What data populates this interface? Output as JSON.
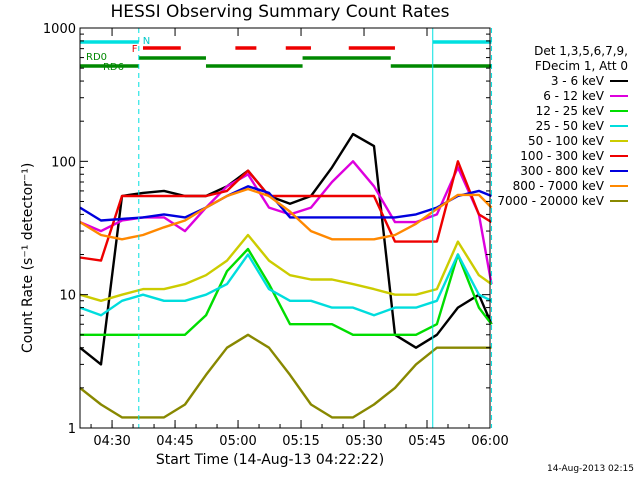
{
  "chart_data": {
    "type": "line",
    "title": "HESSI Observing Summary Count Rates",
    "xlabel": "Start Time (14-Aug-13 04:22:22)",
    "ylabel": "Count Rate (s⁻¹ detector⁻¹)",
    "yscale": "log",
    "ylim": [
      1,
      1000
    ],
    "xlim": [
      "04:22:22",
      "06:00:00"
    ],
    "x_ticks": [
      "04:30",
      "04:45",
      "05:00",
      "05:15",
      "05:30",
      "05:45",
      "06:00"
    ],
    "y_ticks": [
      "1",
      "10",
      "100",
      "1000"
    ],
    "grid": false,
    "legend_position": "right",
    "legend_header": [
      "Det 1,3,5,6,7,9,",
      "FDecim 1, Att 0"
    ],
    "x_minutes": [
      0,
      5,
      10,
      15,
      20,
      25,
      30,
      35,
      40,
      45,
      50,
      55,
      60,
      65,
      70,
      75,
      80,
      85,
      90,
      95,
      98
    ],
    "series": [
      {
        "name": "3 - 6 keV",
        "color": "#000000",
        "values": [
          4,
          3,
          55,
          58,
          60,
          55,
          55,
          65,
          85,
          55,
          48,
          55,
          90,
          160,
          130,
          5,
          4,
          5,
          8,
          10,
          6
        ]
      },
      {
        "name": "6 - 12 keV",
        "color": "#dd00dd",
        "values": [
          35,
          30,
          36,
          38,
          38,
          30,
          45,
          65,
          80,
          45,
          40,
          45,
          70,
          100,
          65,
          35,
          35,
          40,
          90,
          40,
          12
        ]
      },
      {
        "name": "12 - 25 keV",
        "color": "#00dd00",
        "values": [
          5,
          5,
          5,
          5,
          5,
          5,
          7,
          15,
          22,
          12,
          6,
          6,
          6,
          5,
          5,
          5,
          5,
          6,
          20,
          8,
          6
        ]
      },
      {
        "name": "25 - 50 keV",
        "color": "#00dddd",
        "values": [
          8,
          7,
          9,
          10,
          9,
          9,
          10,
          12,
          20,
          11,
          9,
          9,
          8,
          8,
          7,
          8,
          8,
          9,
          20,
          10,
          9
        ]
      },
      {
        "name": "50 - 100 keV",
        "color": "#cccc00",
        "values": [
          10,
          9,
          10,
          11,
          11,
          12,
          14,
          18,
          28,
          18,
          14,
          13,
          13,
          12,
          11,
          10,
          10,
          11,
          25,
          14,
          12
        ]
      },
      {
        "name": "100 - 300 keV",
        "color": "#ee0000",
        "values": [
          19,
          18,
          55,
          55,
          55,
          55,
          55,
          60,
          85,
          55,
          55,
          55,
          55,
          55,
          55,
          25,
          25,
          25,
          100,
          40,
          35
        ]
      },
      {
        "name": "300 - 800 keV",
        "color": "#0000dd",
        "values": [
          45,
          36,
          37,
          38,
          40,
          38,
          45,
          55,
          65,
          58,
          38,
          38,
          38,
          38,
          38,
          38,
          40,
          45,
          55,
          60,
          55
        ]
      },
      {
        "name": "800 - 7000 keV",
        "color": "#ff8800",
        "values": [
          35,
          28,
          26,
          28,
          32,
          36,
          45,
          55,
          62,
          55,
          42,
          30,
          26,
          26,
          26,
          28,
          34,
          44,
          56,
          56,
          45
        ]
      },
      {
        "name": "7000 - 20000 keV",
        "color": "#888800",
        "values": [
          2,
          1.5,
          1.2,
          1.2,
          1.2,
          1.5,
          2.5,
          4,
          5,
          4,
          2.5,
          1.5,
          1.2,
          1.2,
          1.5,
          2,
          3,
          4,
          4,
          4,
          4
        ]
      }
    ],
    "annotations": {
      "labels": [
        "N",
        "F",
        "RD0",
        "RD6"
      ],
      "vertical_markers_minutes": [
        0,
        14,
        84,
        98
      ],
      "status_bars": [
        {
          "label": "N",
          "color": "#00e0e0",
          "segments": [
            [
              0,
              14
            ],
            [
              84,
              98
            ]
          ]
        },
        {
          "label": "F",
          "color": "#ee0000",
          "segments": [
            [
              15,
              24
            ],
            [
              37,
              42
            ],
            [
              49,
              55
            ],
            [
              64,
              75
            ]
          ]
        },
        {
          "label": "RD0",
          "color": "#008800",
          "segments": [
            [
              0,
              14
            ],
            [
              14,
              30
            ],
            [
              30,
              53
            ],
            [
              53,
              74
            ],
            [
              74,
              98
            ]
          ]
        }
      ]
    }
  },
  "footer": {
    "stamp": "14-Aug-2013 02:15"
  }
}
